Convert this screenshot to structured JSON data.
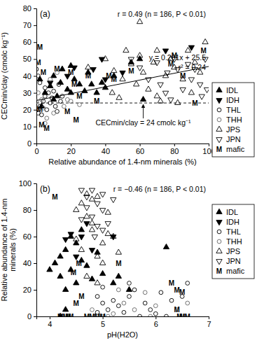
{
  "chart_data": [
    {
      "type": "scatter",
      "title": "(a)",
      "x_label": "Relative abundance of 1.4-nm minerals (%)",
      "y_label": [
        "CECmin/clay (cmolc kg⁻¹)"
      ],
      "xlim": [
        0,
        100
      ],
      "xticks": [
        0,
        20,
        40,
        60,
        80,
        100
      ],
      "ylim": [
        0,
        80
      ],
      "yticks": [
        0,
        10,
        20,
        30,
        40,
        50,
        60,
        70,
        80
      ],
      "legend": "right",
      "annotations": [
        "r = 0.49 (n = 186, P < 0.01)",
        "y = 0.201x + 25.5",
        "r² = 0.24",
        "CECmin/clay = 24 cmolc kg⁻¹"
      ],
      "trendline": {
        "x": [
          0,
          100
        ],
        "values": [
          25.5,
          45.6
        ]
      },
      "reference_line": 24,
      "series": [
        {
          "name": "IDL",
          "color": "#000000",
          "marker": "triangle-up-filled",
          "x": [
            2,
            5,
            8,
            10,
            12,
            14,
            15,
            18,
            20,
            22,
            25,
            28,
            30,
            32,
            35,
            38,
            40,
            20,
            45,
            55,
            62,
            60,
            10,
            3
          ],
          "values": [
            38,
            30,
            34,
            40,
            28,
            36,
            44,
            32,
            30,
            38,
            35,
            31,
            42,
            35,
            30,
            36,
            33,
            46,
            40,
            48,
            26,
            50,
            26,
            22
          ]
        },
        {
          "name": "IDH",
          "color": "#000000",
          "marker": "triangle-down-filled",
          "x": [
            22,
            38,
            40,
            75,
            90,
            50,
            18,
            33,
            8
          ],
          "values": [
            45,
            50,
            38,
            55,
            57,
            42,
            40,
            44,
            36
          ]
        },
        {
          "name": "THL",
          "color": "#000000",
          "marker": "circle-open",
          "x": [
            0,
            1,
            2,
            3,
            4,
            5,
            6,
            7,
            8,
            9,
            10,
            11,
            12,
            13,
            14,
            2,
            1,
            0,
            5,
            15
          ],
          "values": [
            20,
            18,
            22,
            17,
            25,
            28,
            20,
            30,
            24,
            27,
            31,
            22,
            19,
            35,
            25,
            36,
            40,
            44,
            33,
            28
          ]
        },
        {
          "name": "THH",
          "color": "#666666",
          "marker": "circle-open",
          "x": [
            0,
            1,
            3,
            4,
            6,
            8,
            10,
            12,
            16,
            18,
            20,
            25,
            5
          ],
          "values": [
            25,
            30,
            26,
            21,
            15,
            38,
            18,
            42,
            22,
            26,
            25,
            23,
            12
          ]
        },
        {
          "name": "JPS",
          "color": "#000000",
          "marker": "triangle-up-open",
          "x": [
            40,
            45,
            50,
            52,
            55,
            58,
            60,
            62,
            65,
            68,
            70,
            72,
            75,
            78,
            80,
            85,
            88,
            90,
            92,
            95,
            98,
            60,
            44,
            30,
            82,
            70,
            48
          ],
          "values": [
            50,
            43,
            38,
            55,
            47,
            35,
            52,
            42,
            32,
            48,
            28,
            25,
            40,
            50,
            45,
            38,
            55,
            30,
            48,
            42,
            60,
            72,
            30,
            45,
            24,
            55,
            27
          ]
        },
        {
          "name": "JPN",
          "color": "#000000",
          "marker": "triangle-down-open",
          "x": [
            55,
            60,
            65,
            70,
            72,
            75,
            78,
            80,
            82,
            85,
            88,
            90,
            92,
            95,
            96,
            98,
            99,
            76
          ],
          "values": [
            50,
            45,
            38,
            48,
            35,
            30,
            26,
            50,
            44,
            32,
            47,
            38,
            44,
            35,
            28,
            50,
            32,
            42
          ]
        },
        {
          "name": "mafic",
          "color": "#000000",
          "marker": "M",
          "x": [
            2,
            1,
            4,
            3,
            6,
            2,
            35,
            23,
            25,
            30,
            12,
            42,
            45,
            20,
            55,
            78,
            80,
            85,
            92,
            97,
            22,
            18
          ],
          "values": [
            57,
            48,
            42,
            11,
            9,
            20,
            25,
            14,
            28,
            40,
            44,
            40,
            38,
            42,
            43,
            47,
            52,
            40,
            24,
            55,
            35,
            19
          ]
        }
      ]
    },
    {
      "type": "scatter",
      "title": "(b)",
      "x_label": "pH(H2O)",
      "y_label": [
        "Relative abundance of 1.4-nm",
        "minerals (%)"
      ],
      "xlim": [
        3.75,
        7
      ],
      "xticks": [
        4,
        5,
        6,
        7
      ],
      "ylim": [
        0,
        100
      ],
      "yticks": [
        0,
        20,
        40,
        60,
        80,
        100
      ],
      "legend": "right",
      "annotations": [
        "r = −0.46 (n = 186, P < 0.01)"
      ],
      "series": [
        {
          "name": "IDL",
          "color": "#000000",
          "marker": "triangle-up-filled",
          "x": [
            4.1,
            4.2,
            4.3,
            4.2,
            4.4,
            4.5,
            4.3,
            4.6,
            4.5,
            4.7,
            4.8,
            4.4,
            4.9,
            5.0,
            5.2,
            5.5,
            6.2,
            4.0,
            4.6,
            4.3,
            4.2,
            5.3
          ],
          "values": [
            40,
            45,
            50,
            30,
            35,
            25,
            20,
            42,
            55,
            38,
            28,
            60,
            48,
            32,
            25,
            20,
            52,
            35,
            65,
            5,
            0,
            30
          ]
        },
        {
          "name": "IDH",
          "color": "#000000",
          "marker": "triangle-down-filled",
          "x": [
            4.3,
            4.5,
            4.7,
            4.6,
            5.2,
            4.8,
            4.4
          ],
          "values": [
            58,
            45,
            70,
            60,
            60,
            50,
            62
          ]
        },
        {
          "name": "THL",
          "color": "#000000",
          "marker": "circle-open",
          "x": [
            4.9,
            5.0,
            5.1,
            5.2,
            5.3,
            5.4,
            5.5,
            5.6,
            5.8,
            5.9,
            6.0,
            6.3,
            6.5,
            6.6,
            5.7,
            6.2,
            5.0,
            4.9,
            5.5,
            6.1
          ],
          "values": [
            15,
            10,
            5,
            12,
            8,
            3,
            15,
            20,
            10,
            5,
            2,
            12,
            15,
            25,
            0,
            0,
            22,
            3,
            25,
            18
          ]
        },
        {
          "name": "THH",
          "color": "#666666",
          "marker": "circle-open",
          "x": [
            4.8,
            5.0,
            5.2,
            5.4,
            5.6,
            5.8,
            6.0,
            6.4,
            5.3,
            5.1,
            6.6,
            5.9
          ],
          "values": [
            5,
            0,
            2,
            10,
            5,
            18,
            8,
            5,
            20,
            0,
            10,
            0
          ]
        },
        {
          "name": "JPS",
          "color": "#000000",
          "marker": "triangle-up-open",
          "x": [
            4.5,
            4.6,
            4.7,
            4.8,
            4.9,
            4.8,
            4.7,
            5.0,
            5.1,
            5.2,
            4.6,
            4.9,
            5.3,
            4.5,
            5.0,
            4.8,
            5.1,
            4.7,
            4.9
          ],
          "values": [
            80,
            85,
            75,
            70,
            90,
            65,
            92,
            55,
            62,
            60,
            50,
            45,
            48,
            58,
            40,
            88,
            78,
            30,
            25
          ]
        },
        {
          "name": "JPN",
          "color": "#000000",
          "marker": "triangle-down-open",
          "x": [
            4.6,
            4.7,
            4.8,
            4.9,
            5.0,
            4.8,
            4.9,
            5.0,
            4.7,
            5.1,
            4.6,
            5.2,
            5.0,
            4.85
          ],
          "values": [
            95,
            90,
            95,
            85,
            80,
            75,
            68,
            92,
            82,
            70,
            73,
            88,
            65,
            60
          ]
        },
        {
          "name": "mafic",
          "color": "#000000",
          "marker": "M",
          "x": [
            4.1,
            4.2,
            4.3,
            4.35,
            4.4,
            4.45,
            4.5,
            4.6,
            4.7,
            4.8,
            4.9,
            5.0,
            5.3,
            6.3,
            6.4,
            6.5,
            6.4,
            6.5,
            6.6,
            6.45,
            4.55
          ],
          "values": [
            90,
            0,
            0,
            0,
            0,
            33,
            10,
            15,
            0,
            0,
            0,
            0,
            40,
            25,
            20,
            18,
            5,
            0,
            0,
            0,
            40
          ]
        }
      ]
    }
  ]
}
